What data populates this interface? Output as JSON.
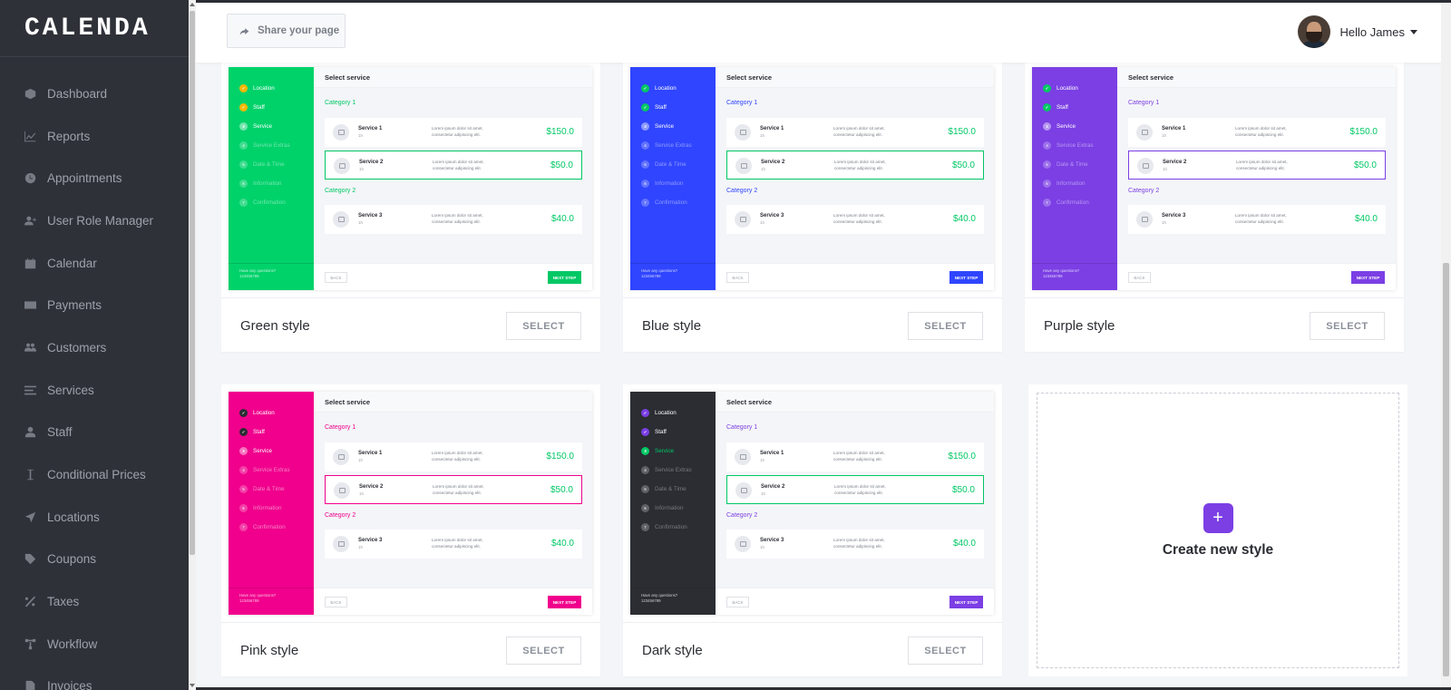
{
  "app": {
    "logo": "CALENDA"
  },
  "sidebar": {
    "items": [
      {
        "label": "Dashboard",
        "icon": "cube-icon"
      },
      {
        "label": "Reports",
        "icon": "chart-line-icon"
      },
      {
        "label": "Appointments",
        "icon": "clock-icon"
      },
      {
        "label": "User Role Manager",
        "icon": "user-plus-icon"
      },
      {
        "label": "Calendar",
        "icon": "calendar-icon"
      },
      {
        "label": "Payments",
        "icon": "credit-card-icon"
      },
      {
        "label": "Customers",
        "icon": "users-icon"
      },
      {
        "label": "Services",
        "icon": "list-icon"
      },
      {
        "label": "Staff",
        "icon": "user-icon"
      },
      {
        "label": "Conditional Prices",
        "icon": "i-cursor-icon"
      },
      {
        "label": "Locations",
        "icon": "location-arrow-icon"
      },
      {
        "label": "Coupons",
        "icon": "tag-icon"
      },
      {
        "label": "Taxes",
        "icon": "percent-icon"
      },
      {
        "label": "Workflow",
        "icon": "workflow-icon"
      },
      {
        "label": "Invoices",
        "icon": "file-icon"
      }
    ]
  },
  "topbar": {
    "share_label": "Share your page",
    "greeting": "Hello James"
  },
  "preview_text": {
    "header": "Select service",
    "category1": "Category 1",
    "category2": "Category 2",
    "services": [
      {
        "name": "Service 1",
        "duration": "1h",
        "desc": "Lorem ipsum dolor sit amet, consectetur adipiscing elit.",
        "price": "$150.0"
      },
      {
        "name": "Service 2",
        "duration": "1h",
        "desc": "Lorem ipsum dolor sit amet, consectetur adipiscing elit.",
        "price": "$50.0"
      },
      {
        "name": "Service 3",
        "duration": "1h",
        "desc": "Lorem ipsum dolor sit amet, consectetur adipiscing elit.",
        "price": "$40.0"
      }
    ],
    "steps": [
      "Location",
      "Staff",
      "Service",
      "Service Extras",
      "Date & Time",
      "Information",
      "Confirmation"
    ],
    "help_line1": "Have any questions?",
    "help_line2": "123456789",
    "back": "BACK",
    "next": "NEXT STEP"
  },
  "styles": [
    {
      "name": "Green style",
      "select": "SELECT",
      "side": "#00d26a",
      "accent": "#00c865",
      "cat": "#00c865",
      "selected_border": "#00c865",
      "price": "#00c865",
      "next": "#00c865",
      "done_dot": "#f5b800",
      "active_dot": "#f5b800",
      "text_on": "#ffffff",
      "text_off": "rgba(255,255,255,0.45)"
    },
    {
      "name": "Blue style",
      "select": "SELECT",
      "side": "#2f45ff",
      "accent": "#2f45ff",
      "cat": "#2f45ff",
      "selected_border": "#00c865",
      "price": "#00c865",
      "next": "#2f45ff",
      "done_dot": "#00c865",
      "active_dot": "#00c865",
      "text_on": "#ffffff",
      "text_off": "rgba(255,255,255,0.45)"
    },
    {
      "name": "Purple style",
      "select": "SELECT",
      "side": "#7b3fe4",
      "accent": "#7b3fe4",
      "cat": "#7b3fe4",
      "selected_border": "#7b3fe4",
      "price": "#00c865",
      "next": "#7b3fe4",
      "done_dot": "#00c865",
      "active_dot": "#00c865",
      "text_on": "#ffffff",
      "text_off": "rgba(255,255,255,0.45)"
    },
    {
      "name": "Pink style",
      "select": "SELECT",
      "side": "#f0008c",
      "accent": "#f0008c",
      "cat": "#f0008c",
      "selected_border": "#f0008c",
      "price": "#00c865",
      "next": "#f0008c",
      "done_dot": "#2b2d33",
      "active_dot": "#2b2d33",
      "text_on": "#ffffff",
      "text_off": "rgba(255,255,255,0.5)"
    },
    {
      "name": "Dark style",
      "select": "SELECT",
      "side": "#2b2d33",
      "accent": "#7b3fe4",
      "cat": "#7b3fe4",
      "selected_border": "#00c865",
      "price": "#00c865",
      "next": "#7b3fe4",
      "done_dot": "#7b3fe4",
      "active_dot": "#00c865",
      "text_on": "#ffffff",
      "text_off": "rgba(255,255,255,0.35)"
    }
  ],
  "create": {
    "label": "Create new style",
    "icon": "plus-icon"
  }
}
